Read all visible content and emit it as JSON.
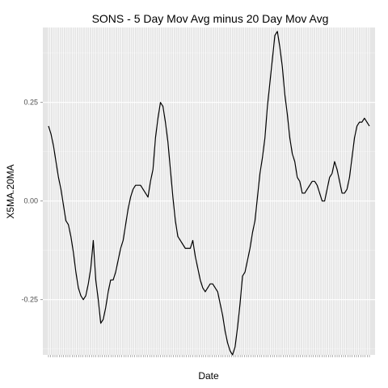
{
  "chart_data": {
    "type": "line",
    "title": "SONS - 5 Day Mov Avg minus 20 Day Mov Avg",
    "xlabel": "Date",
    "ylabel": "X5MA.20MA",
    "ylim": [
      -0.39,
      0.44
    ],
    "yticks": [
      {
        "value": -0.25,
        "label": "-0.25"
      },
      {
        "value": 0.0,
        "label": "0.00"
      },
      {
        "value": 0.25,
        "label": "0.25"
      }
    ],
    "grid": true,
    "background": "#e5e5e5",
    "line_color": "#000000",
    "x_tick_count": 150,
    "series": [
      {
        "values": [
          0.19,
          0.17,
          0.14,
          0.1,
          0.06,
          0.03,
          -0.01,
          -0.05,
          -0.06,
          -0.09,
          -0.13,
          -0.18,
          -0.22,
          -0.24,
          -0.25,
          -0.24,
          -0.21,
          -0.17,
          -0.1,
          -0.2,
          -0.25,
          -0.31,
          -0.3,
          -0.27,
          -0.23,
          -0.2,
          -0.2,
          -0.18,
          -0.15,
          -0.12,
          -0.1,
          -0.06,
          -0.02,
          0.01,
          0.03,
          0.04,
          0.04,
          0.04,
          0.03,
          0.02,
          0.01,
          0.05,
          0.08,
          0.16,
          0.21,
          0.25,
          0.24,
          0.2,
          0.15,
          0.08,
          0.01,
          -0.05,
          -0.09,
          -0.1,
          -0.11,
          -0.12,
          -0.12,
          -0.12,
          -0.1,
          -0.14,
          -0.17,
          -0.2,
          -0.22,
          -0.23,
          -0.22,
          -0.21,
          -0.21,
          -0.22,
          -0.23,
          -0.26,
          -0.29,
          -0.33,
          -0.36,
          -0.38,
          -0.39,
          -0.37,
          -0.32,
          -0.26,
          -0.19,
          -0.18,
          -0.15,
          -0.12,
          -0.08,
          -0.05,
          0.01,
          0.07,
          0.11,
          0.16,
          0.24,
          0.3,
          0.36,
          0.42,
          0.43,
          0.39,
          0.34,
          0.27,
          0.22,
          0.16,
          0.12,
          0.1,
          0.06,
          0.05,
          0.02,
          0.02,
          0.03,
          0.04,
          0.05,
          0.05,
          0.04,
          0.02,
          0.0,
          0.0,
          0.03,
          0.06,
          0.07,
          0.1,
          0.08,
          0.05,
          0.02,
          0.02,
          0.03,
          0.06,
          0.11,
          0.16,
          0.19,
          0.2,
          0.2,
          0.21,
          0.2,
          0.19
        ]
      }
    ]
  }
}
